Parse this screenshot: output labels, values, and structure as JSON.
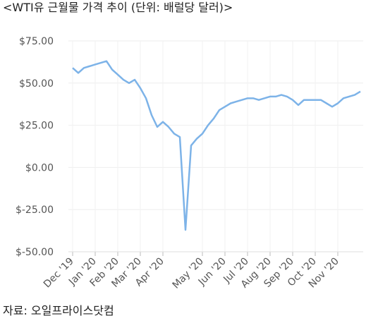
{
  "chart_data": {
    "type": "line",
    "title": "<WTI유 근월물 가격 추이 (단위: 배럴당 달러)>",
    "source": "자료: 오일프라이스닷컴",
    "categories": [
      "Dec '19",
      null,
      null,
      null,
      "Jan '20",
      null,
      null,
      null,
      "Feb '20",
      null,
      null,
      null,
      "Mar '20",
      null,
      null,
      null,
      "Apr '20",
      null,
      null,
      null,
      null,
      null,
      null,
      "May '20",
      null,
      null,
      null,
      "Jun '20",
      null,
      null,
      null,
      "Jul '20",
      null,
      null,
      null,
      "Aug '20",
      null,
      null,
      null,
      "Sep '20",
      null,
      null,
      null,
      "Oct '20",
      null,
      null,
      null,
      "Nov '20",
      null,
      null,
      null,
      null
    ],
    "series": [
      {
        "name": "WTI",
        "color": "#7db3e8",
        "values": [
          59,
          56,
          59,
          60,
          61,
          62,
          63,
          58,
          55,
          52,
          50,
          52,
          47,
          41,
          31,
          24,
          27,
          24,
          20,
          18,
          -37,
          13,
          17,
          20,
          25,
          29,
          34,
          36,
          38,
          39,
          40,
          41,
          41,
          40,
          41,
          42,
          42,
          43,
          42,
          40,
          37,
          40,
          40,
          40,
          40,
          38,
          36,
          38,
          41,
          42,
          43,
          45
        ]
      }
    ],
    "ylim": [
      -50,
      75
    ],
    "yticks": [
      {
        "value": -50,
        "label": "$-50.00"
      },
      {
        "value": -25,
        "label": "$-25.00"
      },
      {
        "value": 0,
        "label": "$0.00"
      },
      {
        "value": 25,
        "label": "$25.00"
      },
      {
        "value": 50,
        "label": "$50.00"
      },
      {
        "value": 75,
        "label": "$75.00"
      }
    ],
    "grid": true
  }
}
